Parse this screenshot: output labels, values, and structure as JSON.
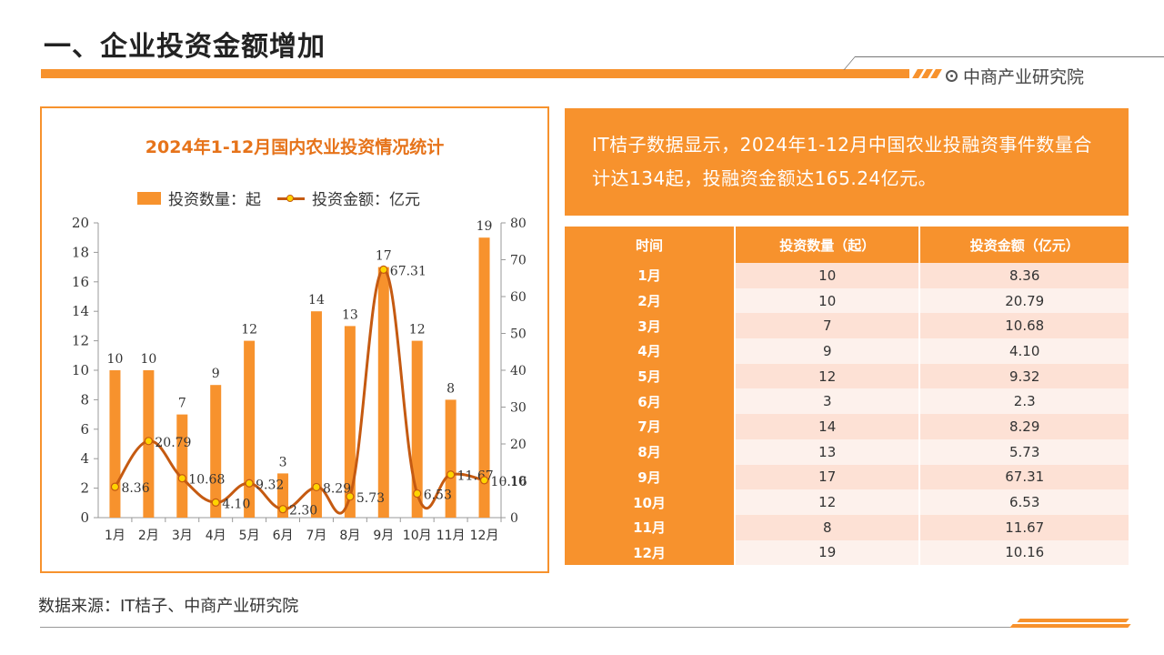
{
  "page": {
    "title": "一、企业投资金额增加",
    "brand": "中商产业研究院",
    "source": "数据来源：IT桔子、中商产业研究院"
  },
  "summary": "IT桔子数据显示，2024年1-12月中国农业投融资事件数量合计达134起，投融资金额达165.24亿元。",
  "table": {
    "headers": [
      "时间",
      "投资数量（起）",
      "投资金额（亿元）"
    ],
    "rows": [
      [
        "1月",
        "10",
        "8.36"
      ],
      [
        "2月",
        "10",
        "20.79"
      ],
      [
        "3月",
        "7",
        "10.68"
      ],
      [
        "4月",
        "9",
        "4.10"
      ],
      [
        "5月",
        "12",
        "9.32"
      ],
      [
        "6月",
        "3",
        "2.3"
      ],
      [
        "7月",
        "14",
        "8.29"
      ],
      [
        "8月",
        "13",
        "5.73"
      ],
      [
        "9月",
        "17",
        "67.31"
      ],
      [
        "10月",
        "12",
        "6.53"
      ],
      [
        "11月",
        "8",
        "11.67"
      ],
      [
        "12月",
        "19",
        "10.16"
      ]
    ]
  },
  "chart_data": {
    "type": "bar",
    "title": "2024年1-12月国内农业投资情况统计",
    "categories": [
      "1月",
      "2月",
      "3月",
      "4月",
      "5月",
      "6月",
      "7月",
      "8月",
      "9月",
      "10月",
      "11月",
      "12月"
    ],
    "series": [
      {
        "name": "投资数量：起",
        "type": "bar",
        "axis": "left",
        "values": [
          10,
          10,
          7,
          9,
          12,
          3,
          14,
          13,
          17,
          12,
          8,
          19
        ],
        "labels": [
          "10",
          "10",
          "7",
          "9",
          "12",
          "3",
          "14",
          "13",
          "17",
          "12",
          "8",
          "19"
        ]
      },
      {
        "name": "投资金额：亿元",
        "type": "line",
        "axis": "right",
        "values": [
          8.36,
          20.79,
          10.68,
          4.1,
          9.32,
          2.3,
          8.29,
          5.73,
          67.31,
          6.53,
          11.67,
          10.16
        ],
        "labels": [
          "8.36",
          "20.79",
          "10.68",
          "4.10",
          "9.32",
          "2.30",
          "8.29",
          "5.73",
          "67.31",
          "6.53",
          "11.67",
          "10.16"
        ]
      }
    ],
    "ylim_left": [
      0,
      20
    ],
    "ylim_right": [
      0,
      80
    ],
    "yticks_left": [
      0,
      2,
      4,
      6,
      8,
      10,
      12,
      14,
      16,
      18,
      20
    ],
    "yticks_right": [
      0,
      10,
      20,
      30,
      40,
      50,
      60,
      70,
      80
    ],
    "grid": false,
    "legend": "top",
    "colors": {
      "bar": "#f7922d",
      "line": "#c55a11",
      "marker": "#ffd400"
    }
  }
}
